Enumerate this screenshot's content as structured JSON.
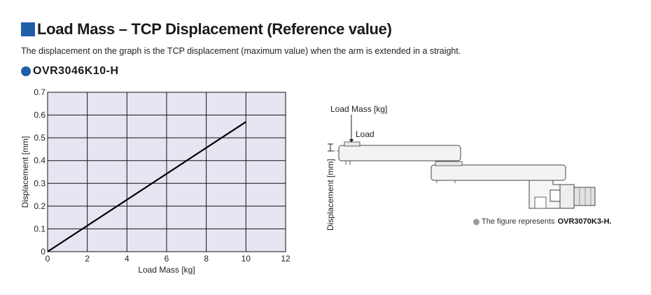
{
  "header": {
    "title": "Load Mass – TCP Displacement (Reference value)",
    "description": "The displacement on the graph is the TCP displacement (maximum value) when the arm is extended in a straight.",
    "model": "OVR3046K10-H"
  },
  "chart_data": {
    "type": "line",
    "title": "",
    "xlabel": "Load Mass [kg]",
    "ylabel": "Displacement [mm]",
    "xlim": [
      0,
      12
    ],
    "ylim": [
      0,
      0.7
    ],
    "xticks": [
      "0",
      "2",
      "4",
      "6",
      "8",
      "10",
      "12"
    ],
    "yticks": [
      "0",
      "0.1",
      "0.2",
      "0.3",
      "0.4",
      "0.5",
      "0.6",
      "0.7"
    ],
    "grid": true,
    "series": [
      {
        "x": [
          0,
          10
        ],
        "y": [
          0,
          0.57
        ]
      }
    ],
    "colors": {
      "plot_background": "#e6e6f2",
      "line": "#000000",
      "grid": "#111111"
    }
  },
  "figure": {
    "load_mass_label": "Load Mass [kg]",
    "load_label": "Load",
    "displacement_label": "Displacement [mm]",
    "note_text": "The figure represents",
    "note_model": "OVR3070K3-H."
  }
}
